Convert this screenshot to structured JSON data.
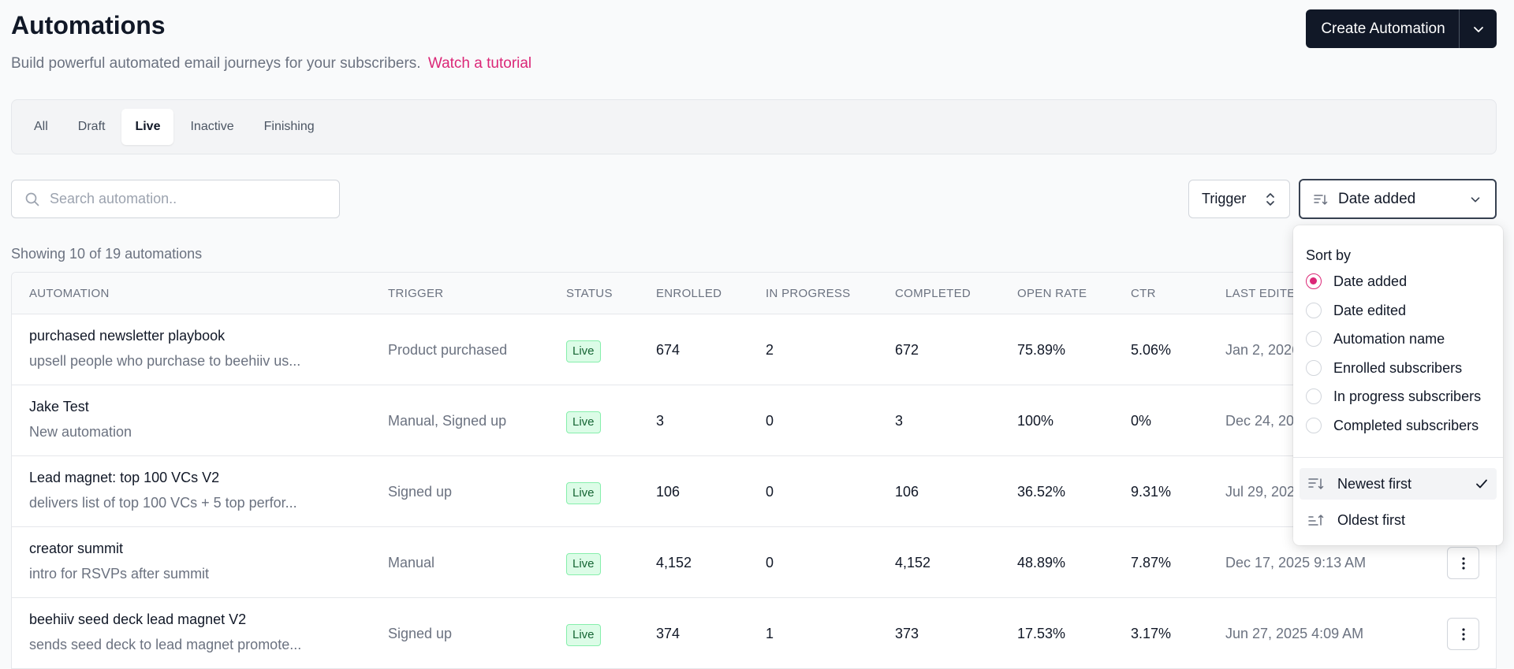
{
  "header": {
    "title": "Automations",
    "subtitle": "Build powerful automated email journeys for your subscribers.",
    "tutorial_link": "Watch a tutorial",
    "create_label": "Create Automation"
  },
  "tabs": [
    {
      "label": "All"
    },
    {
      "label": "Draft"
    },
    {
      "label": "Live",
      "active": true
    },
    {
      "label": "Inactive"
    },
    {
      "label": "Finishing"
    }
  ],
  "search": {
    "placeholder": "Search automation.."
  },
  "filters": {
    "trigger_label": "Trigger",
    "sort_label": "Date added"
  },
  "showing": "Showing 10 of 19 automations",
  "table": {
    "columns": [
      "AUTOMATION",
      "TRIGGER",
      "STATUS",
      "ENROLLED",
      "IN PROGRESS",
      "COMPLETED",
      "OPEN RATE",
      "CTR",
      "LAST EDITED"
    ],
    "column_visible": [
      "AUTOMATION",
      "TRIGGER",
      "STATUS",
      "ENROLLED",
      "IN PROGRESS",
      "COMPLETED",
      "OPEN RATE",
      "CTR",
      "LAST EDITE"
    ],
    "rows": [
      {
        "name": "purchased newsletter playbook",
        "desc": "upsell people who purchase to beehiiv us...",
        "trigger": "Product purchased",
        "status": "Live",
        "enrolled": "674",
        "in_progress": "2",
        "completed": "672",
        "open_rate": "75.89%",
        "ctr": "5.06%",
        "last_edited": "Jan 2, 2026"
      },
      {
        "name": "Jake Test",
        "desc": "New automation",
        "trigger": "Manual, Signed up",
        "status": "Live",
        "enrolled": "3",
        "in_progress": "0",
        "completed": "3",
        "open_rate": "100%",
        "ctr": "0%",
        "last_edited": "Dec 24, 2025"
      },
      {
        "name": "Lead magnet: top 100 VCs V2",
        "desc": "delivers list of top 100 VCs + 5 top perfor...",
        "trigger": "Signed up",
        "status": "Live",
        "enrolled": "106",
        "in_progress": "0",
        "completed": "106",
        "open_rate": "36.52%",
        "ctr": "9.31%",
        "last_edited": "Jul 29, 2025"
      },
      {
        "name": "creator summit",
        "desc": "intro for RSVPs after summit",
        "trigger": "Manual",
        "status": "Live",
        "enrolled": "4,152",
        "in_progress": "0",
        "completed": "4,152",
        "open_rate": "48.89%",
        "ctr": "7.87%",
        "last_edited": "Dec 17, 2025 9:13 AM"
      },
      {
        "name": "beehiiv seed deck lead magnet V2",
        "desc": "sends seed deck to lead magnet promote...",
        "trigger": "Signed up",
        "status": "Live",
        "enrolled": "374",
        "in_progress": "1",
        "completed": "373",
        "open_rate": "17.53%",
        "ctr": "3.17%",
        "last_edited": "Jun 27, 2025 4:09 AM"
      }
    ]
  },
  "sort_menu": {
    "title": "Sort by",
    "options": [
      {
        "label": "Date added",
        "selected": true
      },
      {
        "label": "Date edited"
      },
      {
        "label": "Automation name"
      },
      {
        "label": "Enrolled subscribers"
      },
      {
        "label": "In progress subscribers"
      },
      {
        "label": "Completed subscribers"
      }
    ],
    "order": [
      {
        "label": "Newest first",
        "selected": true
      },
      {
        "label": "Oldest first"
      }
    ]
  },
  "colors": {
    "accent": "#db2777",
    "primary": "#111827",
    "live_bg": "#dcfce7",
    "live_text": "#166534"
  }
}
